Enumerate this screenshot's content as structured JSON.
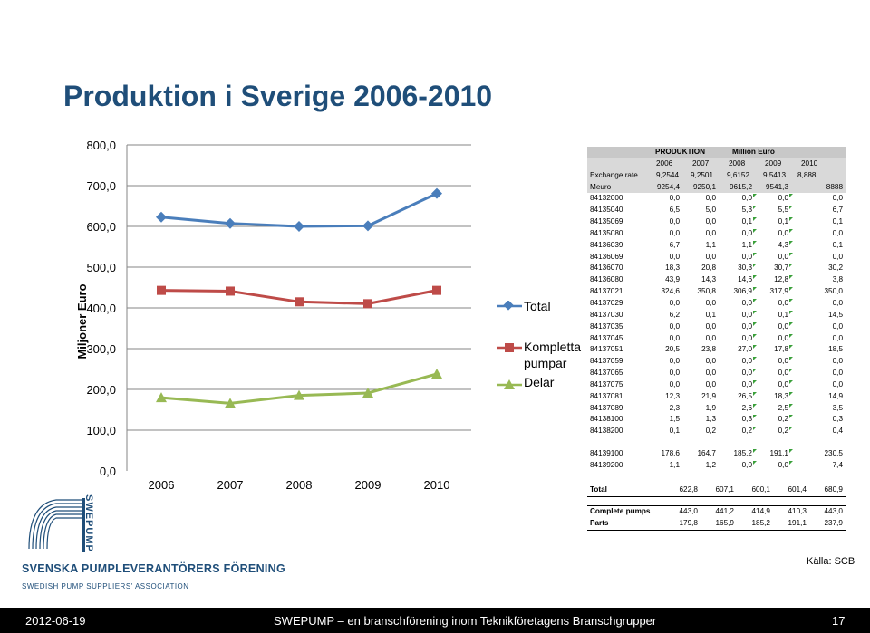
{
  "title": "Produktion i Sverige 2006-2010",
  "chart_data": {
    "type": "line",
    "ylabel": "Miljoner Euro",
    "ylim": [
      0,
      800
    ],
    "yticks": [
      "0,0",
      "100,0",
      "200,0",
      "300,0",
      "400,0",
      "500,0",
      "600,0",
      "700,0",
      "800,0"
    ],
    "categories": [
      "2006",
      "2007",
      "2008",
      "2009",
      "2010"
    ],
    "series": [
      {
        "name": "Total",
        "values": [
          622.8,
          607.1,
          600.1,
          601.4,
          680.9
        ],
        "color": "#4a7ebb",
        "marker": "diamond"
      },
      {
        "name": "Kompletta pumpar",
        "values": [
          443.0,
          441.2,
          414.9,
          410.3,
          443.0
        ],
        "color": "#be4b48",
        "marker": "square"
      },
      {
        "name": "Delar",
        "values": [
          179.8,
          165.9,
          185.2,
          191.1,
          237.9
        ],
        "color": "#98b954",
        "marker": "triangle"
      }
    ],
    "grid": true,
    "legend": "right"
  },
  "table": {
    "header1": [
      "PRODUKTION",
      "Million Euro"
    ],
    "years": [
      "2006",
      "2007",
      "2008",
      "2009",
      "2010"
    ],
    "exchange": {
      "label": "Exchange rate",
      "values": [
        "9,2544",
        "9,2501",
        "9,6152",
        "9,5413",
        "8,888"
      ]
    },
    "meuro": {
      "label": "Meuro",
      "values": [
        "9254,4",
        "9250,1",
        "9615,2",
        "9541,3",
        "8888"
      ]
    },
    "rows": [
      {
        "code": "84132000",
        "values": [
          "0,0",
          "0,0",
          "0,0",
          "0,0",
          "0,0"
        ]
      },
      {
        "code": "84135040",
        "values": [
          "6,5",
          "5,0",
          "5,3",
          "5,5",
          "6,7"
        ]
      },
      {
        "code": "84135069",
        "values": [
          "0,0",
          "0,0",
          "0,1",
          "0,1",
          "0,1"
        ]
      },
      {
        "code": "84135080",
        "values": [
          "0,0",
          "0,0",
          "0,0",
          "0,0",
          "0,0"
        ]
      },
      {
        "code": "84136039",
        "values": [
          "6,7",
          "1,1",
          "1,1",
          "4,3",
          "0,1"
        ]
      },
      {
        "code": "84136069",
        "values": [
          "0,0",
          "0,0",
          "0,0",
          "0,0",
          "0,0"
        ]
      },
      {
        "code": "84136070",
        "values": [
          "18,3",
          "20,8",
          "30,3",
          "30,7",
          "30,2"
        ]
      },
      {
        "code": "84136080",
        "values": [
          "43,9",
          "14,3",
          "14,6",
          "12,8",
          "3,8"
        ]
      },
      {
        "code": "84137021",
        "values": [
          "324,6",
          "350,8",
          "306,9",
          "317,9",
          "350,0"
        ]
      },
      {
        "code": "84137029",
        "values": [
          "0,0",
          "0,0",
          "0,0",
          "0,0",
          "0,0"
        ]
      },
      {
        "code": "84137030",
        "values": [
          "6,2",
          "0,1",
          "0,0",
          "0,1",
          "14,5"
        ]
      },
      {
        "code": "84137035",
        "values": [
          "0,0",
          "0,0",
          "0,0",
          "0,0",
          "0,0"
        ]
      },
      {
        "code": "84137045",
        "values": [
          "0,0",
          "0,0",
          "0,0",
          "0,0",
          "0,0"
        ]
      },
      {
        "code": "84137051",
        "values": [
          "20,5",
          "23,8",
          "27,0",
          "17,8",
          "18,5"
        ]
      },
      {
        "code": "84137059",
        "values": [
          "0,0",
          "0,0",
          "0,0",
          "0,0",
          "0,0"
        ]
      },
      {
        "code": "84137065",
        "values": [
          "0,0",
          "0,0",
          "0,0",
          "0,0",
          "0,0"
        ]
      },
      {
        "code": "84137075",
        "values": [
          "0,0",
          "0,0",
          "0,0",
          "0,0",
          "0,0"
        ]
      },
      {
        "code": "84137081",
        "values": [
          "12,3",
          "21,9",
          "26,5",
          "18,3",
          "14,9"
        ]
      },
      {
        "code": "84137089",
        "values": [
          "2,3",
          "1,9",
          "2,6",
          "2,5",
          "3,5"
        ]
      },
      {
        "code": "84138100",
        "values": [
          "1,5",
          "1,3",
          "0,3",
          "0,2",
          "0,3"
        ]
      },
      {
        "code": "84138200",
        "values": [
          "0,1",
          "0,2",
          "0,2",
          "0,2",
          "0,4"
        ]
      }
    ],
    "rows2": [
      {
        "code": "84139100",
        "values": [
          "178,6",
          "164,7",
          "185,2",
          "191,1",
          "230,5"
        ]
      },
      {
        "code": "84139200",
        "values": [
          "1,1",
          "1,2",
          "0,0",
          "0,0",
          "7,4"
        ]
      }
    ],
    "total": {
      "label": "Total",
      "values": [
        "622,8",
        "607,1",
        "600,1",
        "601,4",
        "680,9"
      ]
    },
    "complete": {
      "label": "Complete pumps",
      "values": [
        "443,0",
        "441,2",
        "414,9",
        "410,3",
        "443,0"
      ]
    },
    "parts": {
      "label": "Parts",
      "values": [
        "179,8",
        "165,9",
        "185,2",
        "191,1",
        "237,9"
      ]
    }
  },
  "logo": {
    "vertical": "SWEPUMP",
    "name": "SVENSKA PUMPLEVERANTÖRERS FÖRENING",
    "subtitle": "SWEDISH PUMP SUPPLIERS' ASSOCIATION"
  },
  "source": "Källa: SCB",
  "footer": {
    "date": "2012-06-19",
    "text": "SWEPUMP – en branschförening inom Teknikföretagens Branschgrupper",
    "page": "17"
  }
}
